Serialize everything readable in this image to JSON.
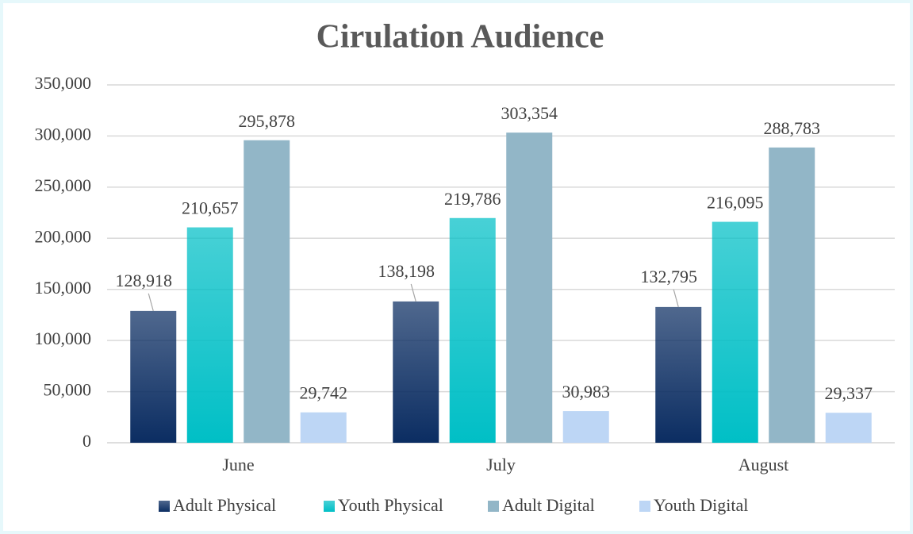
{
  "chart_data": {
    "type": "bar",
    "title": "Cirulation Audience",
    "categories": [
      "June",
      "July",
      "August"
    ],
    "series": [
      {
        "name": "Adult Physical",
        "color": "#0b2d62",
        "gradient": true,
        "values": [
          128918,
          138198,
          132795
        ],
        "value_labels": [
          "128,918",
          "138,198",
          "132,795"
        ]
      },
      {
        "name": "Youth Physical",
        "color": "#00bfc6",
        "gradient": true,
        "values": [
          210657,
          219786,
          216095
        ],
        "value_labels": [
          "210,657",
          "219,786",
          "216,095"
        ]
      },
      {
        "name": "Adult Digital",
        "color": "#92b6c7",
        "gradient": false,
        "values": [
          295878,
          303354,
          288783
        ],
        "value_labels": [
          "295,878",
          "303,354",
          "288,783"
        ]
      },
      {
        "name": "Youth Digital",
        "color": "#bdd6f5",
        "gradient": false,
        "values": [
          29742,
          30983,
          29337
        ],
        "value_labels": [
          "29,742",
          "30,983",
          "29,337"
        ]
      }
    ],
    "ylim": [
      0,
      350000
    ],
    "yticks": [
      0,
      {
        "value": 50000,
        "label": "50,000"
      },
      {
        "value": 100000,
        "label": "100,000"
      },
      {
        "value": 150000,
        "label": "150,000"
      },
      {
        "value": 200000,
        "label": "200,000"
      },
      {
        "value": 250000,
        "label": "250,000"
      },
      {
        "value": 300000,
        "label": "300,000"
      },
      {
        "value": 350000,
        "label": "350,000"
      }
    ],
    "grid": true,
    "legend": "bottom"
  }
}
